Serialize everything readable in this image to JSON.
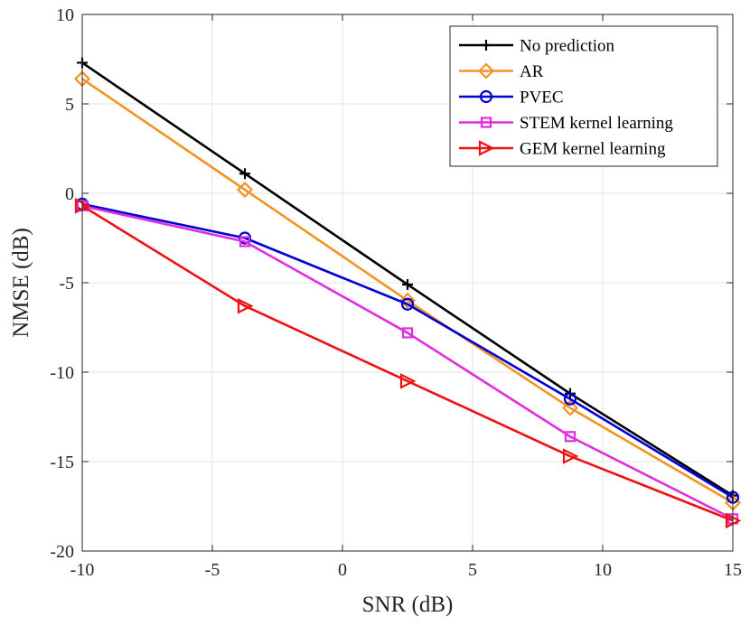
{
  "chart_data": {
    "type": "line",
    "title": "",
    "xlabel": "SNR (dB)",
    "ylabel": "NMSE (dB)",
    "xlim": [
      -10,
      15
    ],
    "ylim": [
      -20,
      10
    ],
    "xticks": [
      -10,
      -5,
      0,
      5,
      10,
      15
    ],
    "yticks": [
      -20,
      -15,
      -10,
      -5,
      0,
      5,
      10
    ],
    "xtick_labels": [
      "-10",
      "-5",
      "0",
      "5",
      "10",
      "15"
    ],
    "ytick_labels": [
      "-20",
      "-15",
      "-10",
      "-5",
      "0",
      "5",
      "10"
    ],
    "grid": true,
    "legend_position": "top-right",
    "x": [
      -10,
      -3.75,
      2.5,
      8.75,
      15
    ],
    "series": [
      {
        "name": "No prediction",
        "color": "#000000",
        "marker": "plus",
        "values": [
          7.3,
          1.1,
          -5.1,
          -11.2,
          -16.9
        ]
      },
      {
        "name": "AR",
        "color": "#f39325",
        "marker": "diamond",
        "values": [
          6.4,
          0.2,
          -6.0,
          -12.0,
          -17.3
        ]
      },
      {
        "name": "PVEC",
        "color": "#0000d4",
        "marker": "circle",
        "values": [
          -0.6,
          -2.5,
          -6.2,
          -11.5,
          -17.0
        ]
      },
      {
        "name": "STEM kernel learning",
        "color": "#df2edf",
        "marker": "square",
        "values": [
          -0.7,
          -2.7,
          -7.8,
          -13.6,
          -18.2
        ]
      },
      {
        "name": "GEM kernel learning",
        "color": "#ee1111",
        "marker": "triangle-right",
        "values": [
          -0.7,
          -6.3,
          -10.5,
          -14.7,
          -18.3
        ]
      }
    ]
  }
}
